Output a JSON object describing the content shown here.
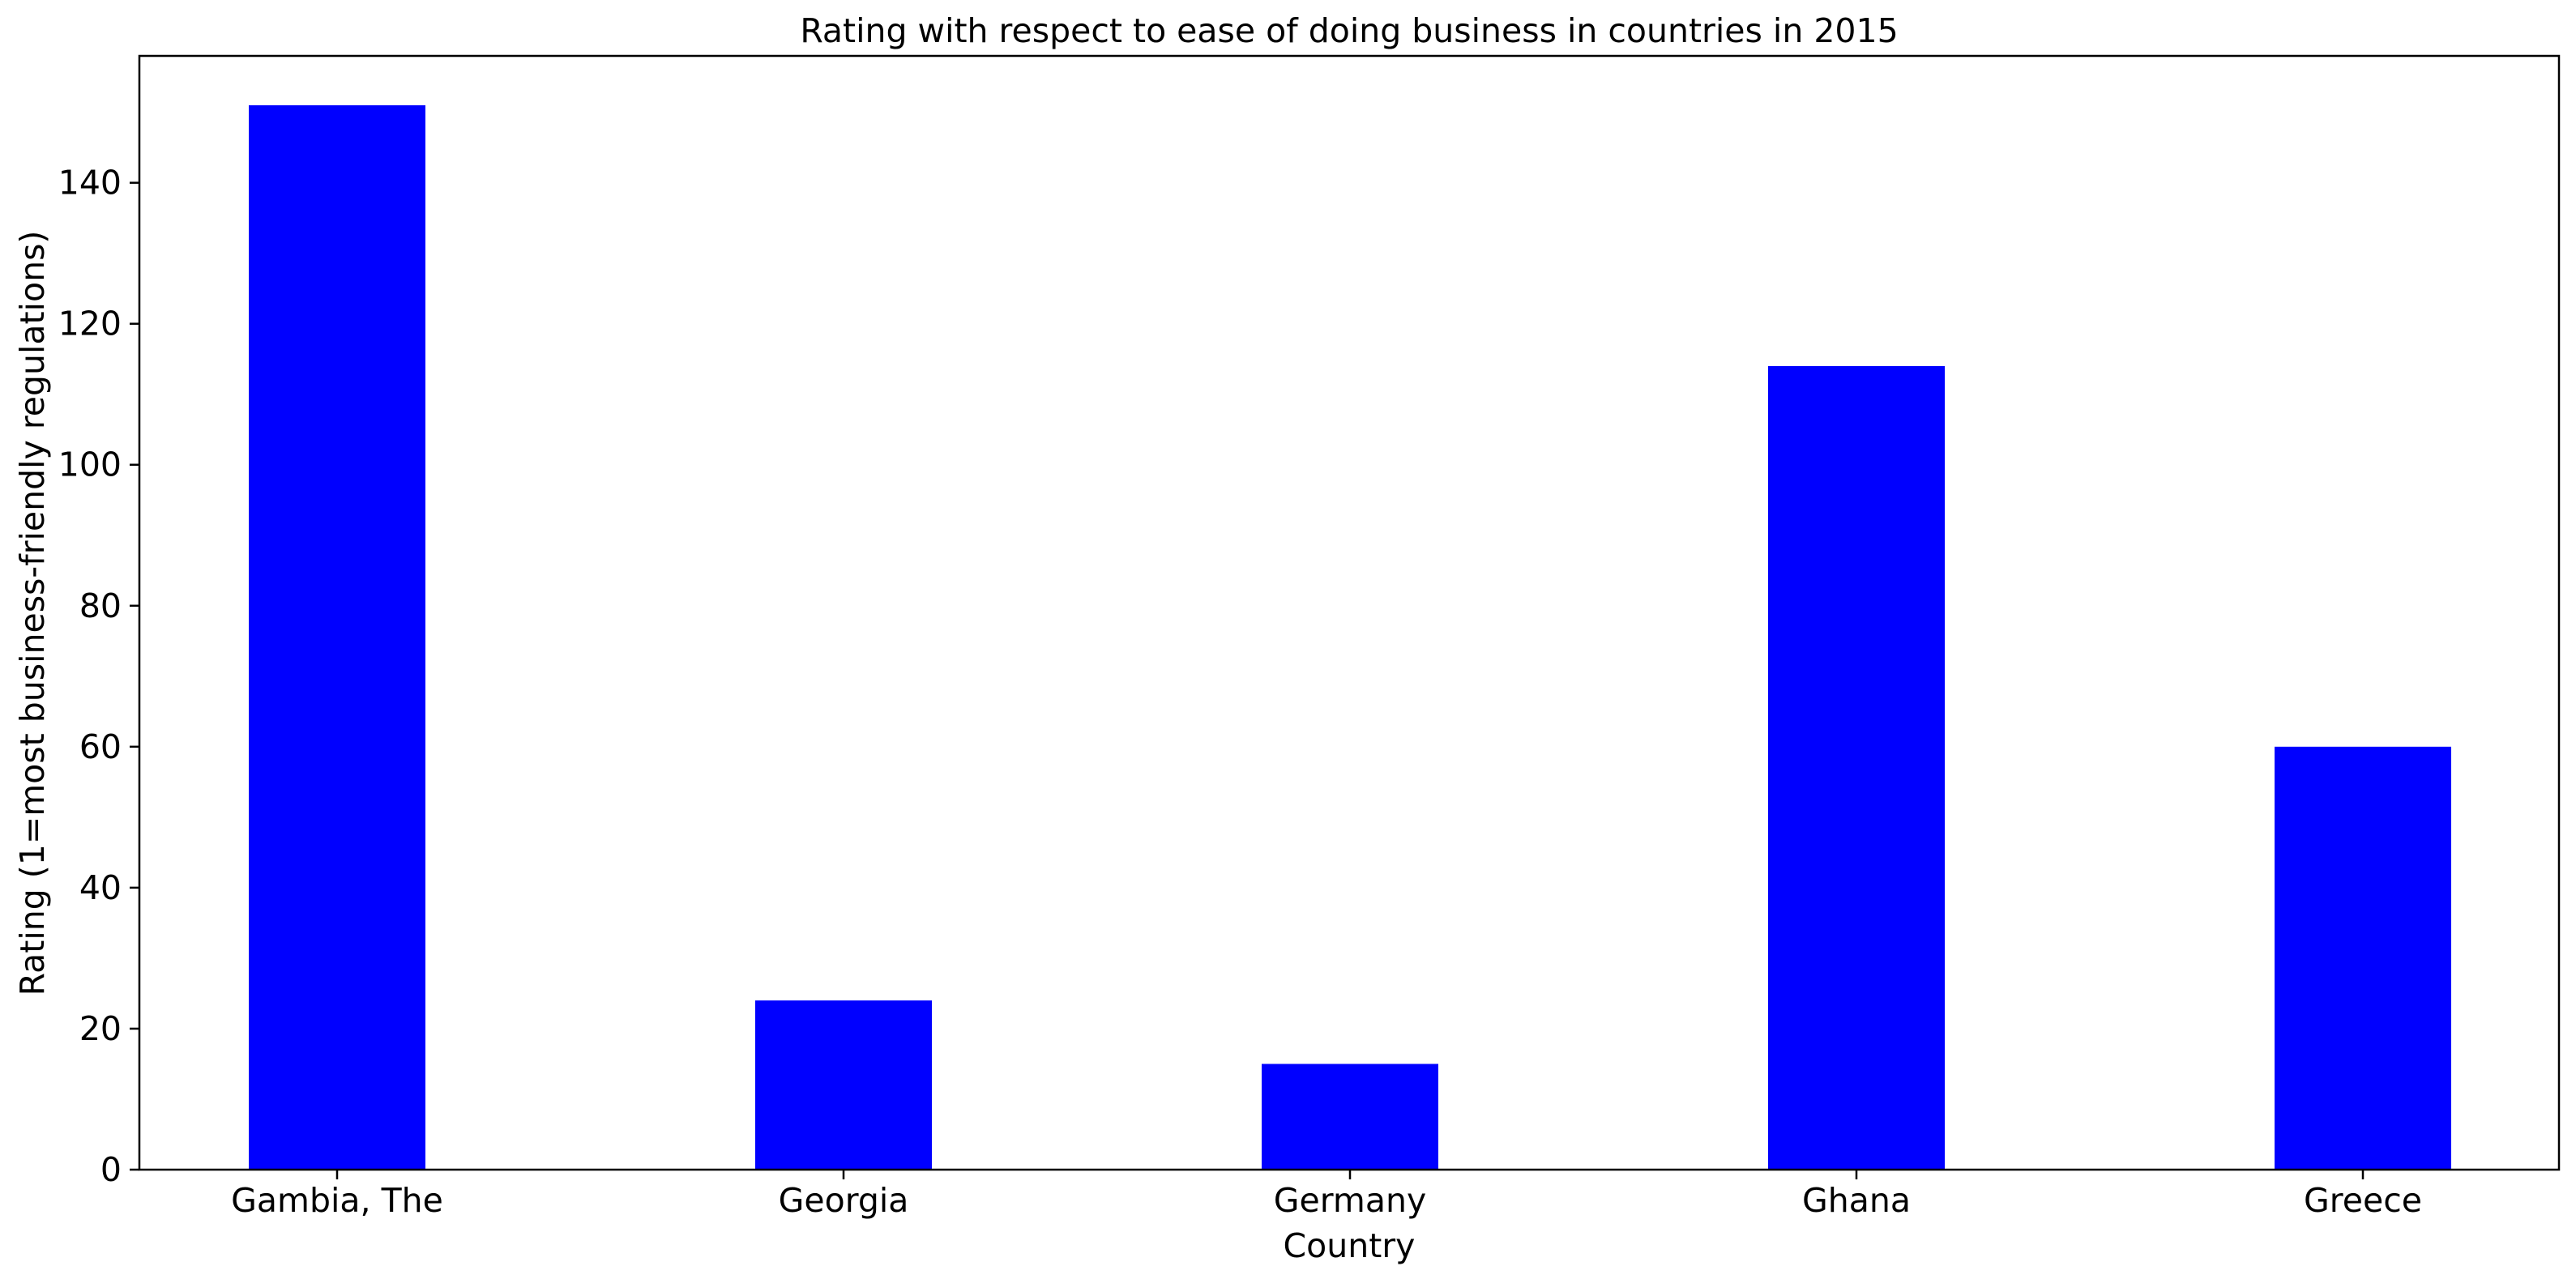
{
  "chart_data": {
    "type": "bar",
    "title": "Rating with respect to ease of doing business in countries in 2015",
    "xlabel": "Country",
    "ylabel": "Rating (1=most business-friendly regulations)",
    "categories": [
      "Gambia, The",
      "Georgia",
      "Germany",
      "Ghana",
      "Greece"
    ],
    "values": [
      151,
      24,
      15,
      114,
      60
    ],
    "ylim": [
      0,
      158
    ],
    "yticks": [
      0,
      20,
      40,
      60,
      80,
      100,
      120,
      140
    ],
    "grid": false,
    "legend": "none",
    "bar_color": "#0000ff",
    "axis_color": "#000000",
    "background": "#ffffff"
  }
}
